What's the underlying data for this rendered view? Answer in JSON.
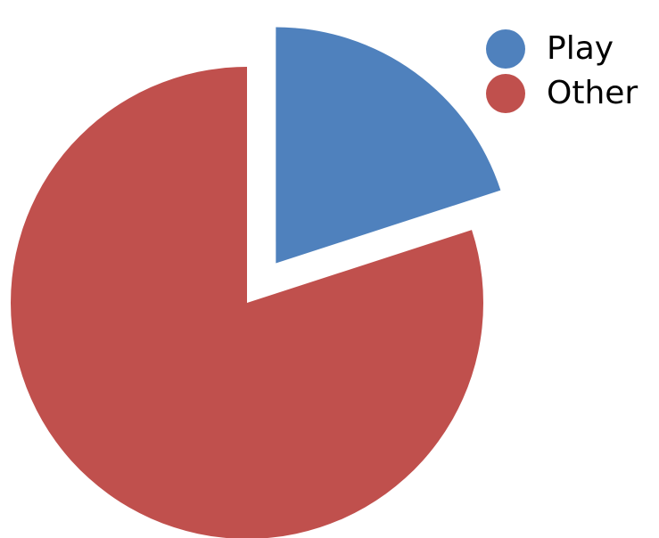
{
  "chart_data": {
    "type": "pie",
    "title": "",
    "exploded": true,
    "legend_position": "top-right",
    "series": [
      {
        "name": "Play",
        "value": 20,
        "color": "#4f81bd"
      },
      {
        "name": "Other",
        "value": 80,
        "color": "#c0504d"
      }
    ]
  }
}
